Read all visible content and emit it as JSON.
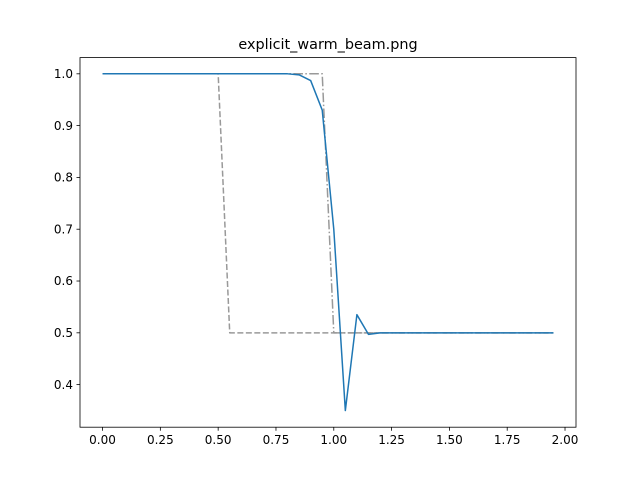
{
  "chart_data": {
    "type": "line",
    "title": "explicit_warm_beam.png",
    "xlabel": "",
    "ylabel": "",
    "xlim": [
      -0.0975,
      2.0475
    ],
    "ylim": [
      0.3178,
      1.0313
    ],
    "x_ticks": [
      0.0,
      0.25,
      0.5,
      0.75,
      1.0,
      1.25,
      1.5,
      1.75,
      2.0
    ],
    "x_tick_labels": [
      "0.00",
      "0.25",
      "0.50",
      "0.75",
      "1.00",
      "1.25",
      "1.50",
      "1.75",
      "2.00"
    ],
    "y_ticks": [
      0.4,
      0.5,
      0.6,
      0.7,
      0.8,
      0.9,
      1.0
    ],
    "y_tick_labels": [
      "0.4",
      "0.5",
      "0.6",
      "0.7",
      "0.8",
      "0.9",
      "1.0"
    ],
    "grid": false,
    "series": [
      {
        "style": "dashed",
        "color": "#999999",
        "x": [
          0.0,
          0.5,
          0.55,
          1.95
        ],
        "y": [
          1.0,
          1.0,
          0.5,
          0.5
        ]
      },
      {
        "style": "dashdot",
        "color": "#999999",
        "x": [
          0.0,
          0.95,
          1.0,
          1.95
        ],
        "y": [
          1.0,
          1.0,
          0.5,
          0.5
        ]
      },
      {
        "style": "solid",
        "color": "#1f77b4",
        "x": [
          0.0,
          0.1,
          0.2,
          0.3,
          0.4,
          0.5,
          0.6,
          0.7,
          0.75,
          0.8,
          0.85,
          0.9,
          0.95,
          1.0,
          1.05,
          1.1,
          1.15,
          1.2,
          1.25,
          1.3,
          1.4,
          1.5,
          1.6,
          1.7,
          1.8,
          1.9,
          1.95
        ],
        "y": [
          1.0,
          1.0,
          1.0,
          1.0,
          1.0,
          1.0,
          1.0,
          1.0,
          1.0,
          1.0,
          0.998,
          0.987,
          0.93,
          0.7,
          0.35,
          0.535,
          0.497,
          0.5,
          0.5,
          0.5,
          0.5,
          0.5,
          0.5,
          0.5,
          0.5,
          0.5,
          0.5
        ]
      }
    ]
  }
}
